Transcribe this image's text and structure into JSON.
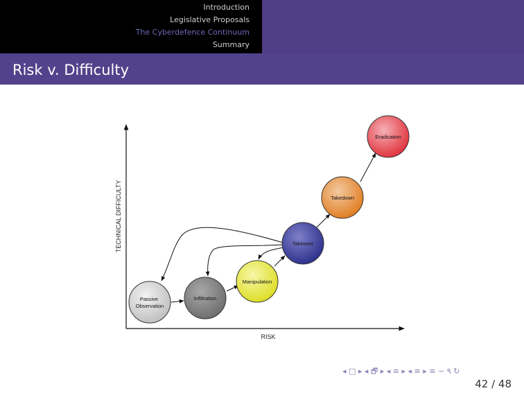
{
  "navigation": {
    "sections": [
      {
        "label": "Introduction",
        "active": false
      },
      {
        "label": "Legislative Proposals",
        "active": false
      },
      {
        "label": "The Cyberdefence Continuum",
        "active": true
      },
      {
        "label": "Summary",
        "active": false
      }
    ]
  },
  "frame": {
    "title": "Risk v. Difficulty"
  },
  "diagram": {
    "y_axis_label": "TECHNICAL DIFFICULTY",
    "x_axis_label": "RISK",
    "stages": [
      {
        "label": "Passive\nObservation",
        "color": "#d8d8d8"
      },
      {
        "label": "Infiltration",
        "color": "#8c8c8c"
      },
      {
        "label": "Manipulation",
        "color": "#ecec3a"
      },
      {
        "label": "Takeover",
        "color": "#3a3d9f"
      },
      {
        "label": "Takedown",
        "color": "#e88d33"
      },
      {
        "label": "Eradication",
        "color": "#e8434d"
      }
    ]
  },
  "footer": {
    "nav_symbols": "◂ □ ▸ ◂ 🗗 ▸ ◂ ≡ ▸ ◂ ≡ ▸ ≡ ∽ ۹ ↻",
    "current_page": "42",
    "total_pages": "48"
  },
  "colors": {
    "header_left": "#000000",
    "header_right": "#4f3d85",
    "title_bar": "#52428b",
    "nav_active": "#6a6ab8",
    "nav_inactive": "#cfcfcf"
  }
}
